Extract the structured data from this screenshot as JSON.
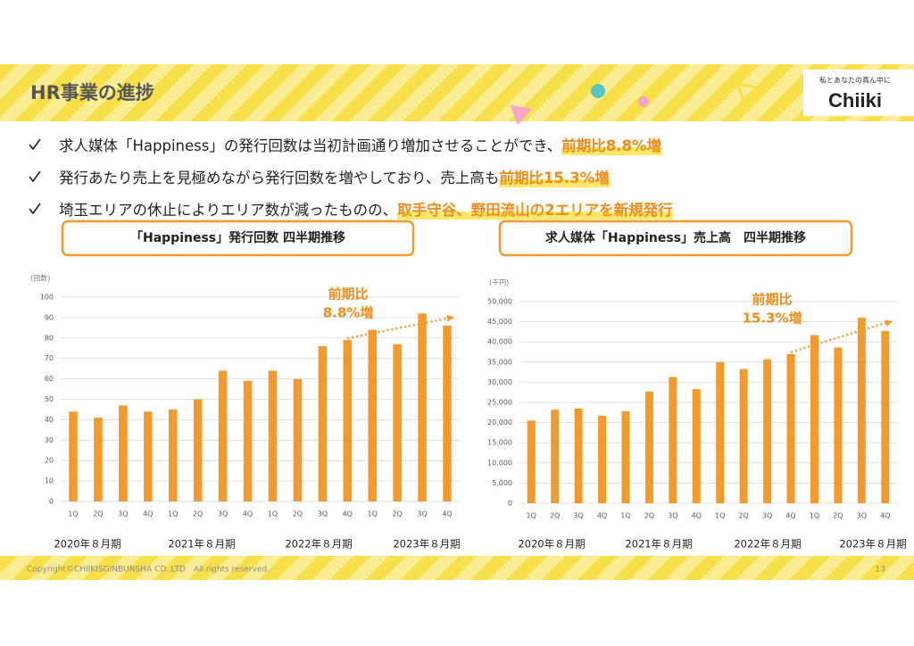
{
  "header": {
    "title": "HR事業の進捗"
  },
  "logo": {
    "tagline": "私とあなたの真ん中に",
    "name": "Chiiki"
  },
  "bullets": [
    {
      "text": "求人媒体「Happiness」の発行回数は当初計画通り増加させることができ、",
      "highlight": "前期比8.8%増"
    },
    {
      "text": "発行あたり売上を見極めながら発行回数を増やしており、売上高も",
      "highlight": "前期比15.3%増"
    },
    {
      "text": "埼玉エリアの休止によりエリア数が減ったものの、",
      "highlight": "取手守谷、野田流山の2エリアを新規発行"
    }
  ],
  "chart_data": [
    {
      "type": "bar",
      "title": "「Happiness」発行回数 四半期推移",
      "unit_label": "(回数)",
      "categories": [
        "1Q",
        "2Q",
        "3Q",
        "4Q",
        "1Q",
        "2Q",
        "3Q",
        "4Q",
        "1Q",
        "2Q",
        "3Q",
        "4Q",
        "1Q",
        "2Q",
        "3Q",
        "4Q"
      ],
      "values": [
        44,
        41,
        47,
        44,
        45,
        50,
        64,
        59,
        64,
        60,
        76,
        79,
        84,
        77,
        92,
        86
      ],
      "color": "#f39a2a",
      "ylim": [
        0,
        100
      ],
      "yticks": [
        0,
        10,
        20,
        30,
        40,
        50,
        60,
        70,
        80,
        90,
        100
      ],
      "grid": true,
      "annotation": [
        "前期比",
        "8.8%増"
      ],
      "period_labels": [
        "2020年８月期",
        "2021年８月期",
        "2022年８月期",
        "2023年８月期"
      ]
    },
    {
      "type": "bar",
      "title": "求人媒体「Happiness」売上高　四半期推移",
      "unit_label": "(千円)",
      "categories": [
        "1Q",
        "2Q",
        "3Q",
        "4Q",
        "1Q",
        "2Q",
        "3Q",
        "4Q",
        "1Q",
        "2Q",
        "3Q",
        "4Q",
        "1Q",
        "2Q",
        "3Q",
        "4Q"
      ],
      "values": [
        20500,
        23200,
        23500,
        21700,
        22800,
        27700,
        31300,
        28300,
        35000,
        33300,
        35700,
        37000,
        41700,
        38600,
        46000,
        42700
      ],
      "color": "#f39a2a",
      "ylim": [
        0,
        50000
      ],
      "yticks": [
        0,
        {
          "value": 5000,
          "label": "5,000"
        },
        {
          "value": 10000,
          "label": "10,000"
        },
        {
          "value": 15000,
          "label": "15,000"
        },
        {
          "value": 20000,
          "label": "20,000"
        },
        {
          "value": 25000,
          "label": "25,000"
        },
        {
          "value": 30000,
          "label": "30,000"
        },
        {
          "value": 35000,
          "label": "35,000"
        },
        {
          "value": 40000,
          "label": "40,000"
        },
        {
          "value": 45000,
          "label": "45,000"
        },
        {
          "value": 50000,
          "label": "50,000"
        }
      ],
      "grid": true,
      "annotation": [
        "前期比",
        "15.3%増"
      ],
      "period_labels": [
        "2020年８月期",
        "2021年８月期",
        "2022年８月期",
        "2023年８月期"
      ]
    }
  ],
  "footer": {
    "copyright": "Copyright©CHIIKISGINBUNSHA CO.,LTD　All rights reserved.",
    "page": "13"
  }
}
